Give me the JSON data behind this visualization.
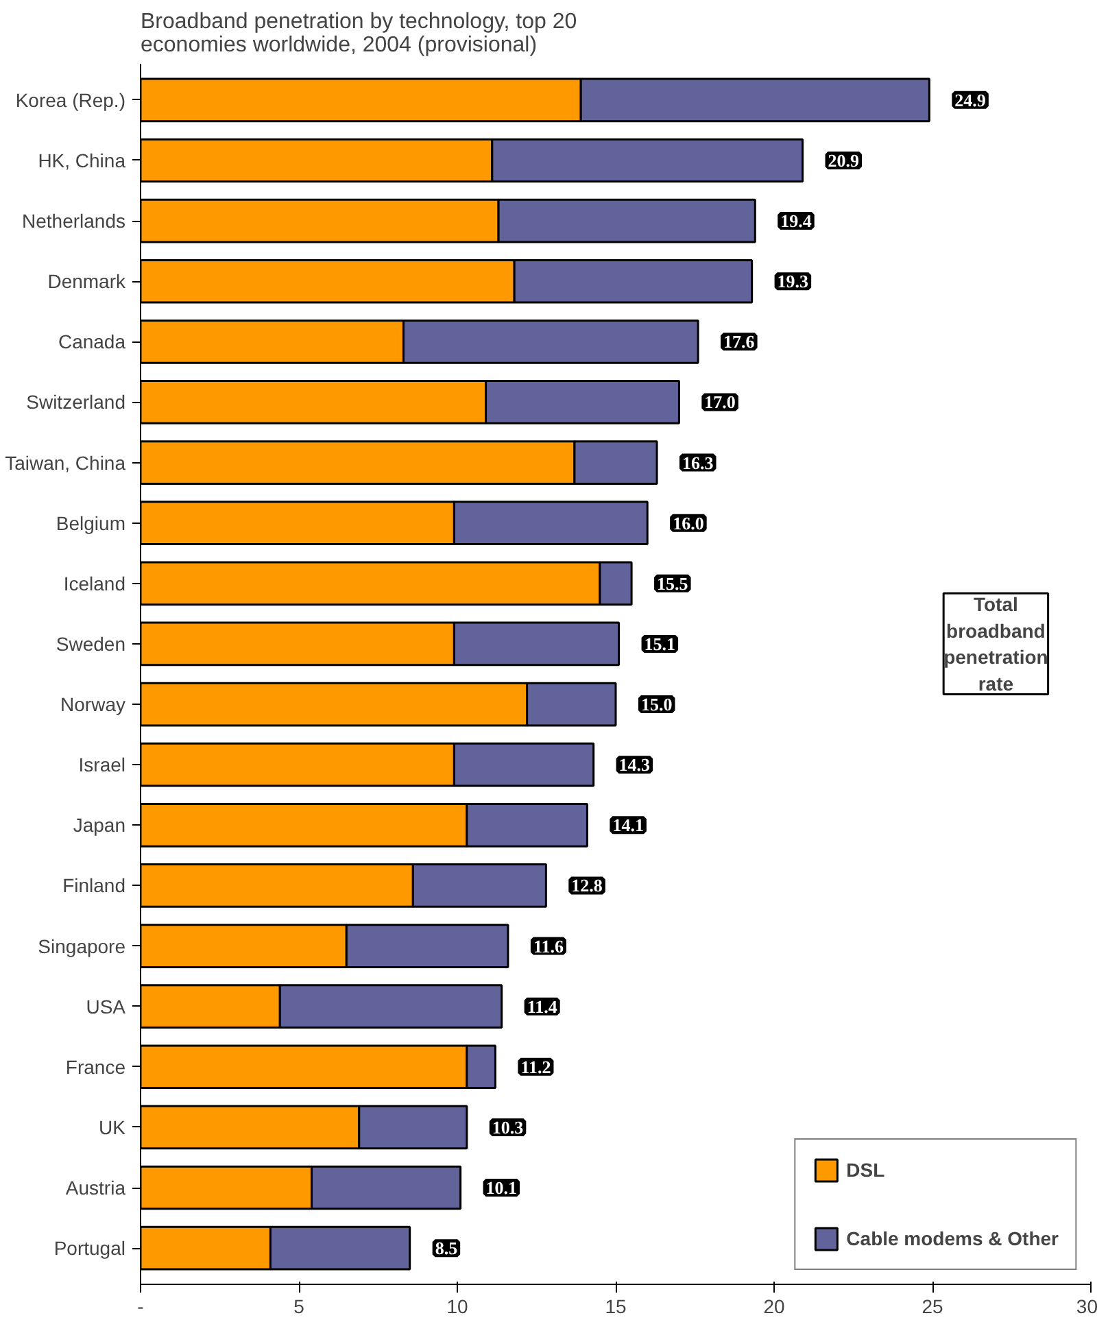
{
  "chart_data": {
    "type": "bar",
    "orientation": "horizontal",
    "stacked": true,
    "title": "Broadband penetration by technology, top 20 economies worldwide, 2004 (provisional)",
    "categories": [
      "Korea (Rep.)",
      "HK, China",
      "Netherlands",
      "Denmark",
      "Canada",
      "Switzerland",
      "Taiwan, China",
      "Belgium",
      "Iceland",
      "Sweden",
      "Norway",
      "Israel",
      "Japan",
      "Finland",
      "Singapore",
      "USA",
      "France",
      "UK",
      "Austria",
      "Portugal"
    ],
    "series": [
      {
        "name": "DSL",
        "color": "#ff9900",
        "values": [
          13.9,
          11.1,
          11.3,
          11.8,
          8.3,
          10.9,
          13.7,
          9.9,
          14.5,
          9.9,
          12.2,
          9.9,
          10.3,
          8.6,
          6.5,
          4.4,
          10.3,
          6.9,
          5.4,
          4.1
        ]
      },
      {
        "name": "Cable modems & Other",
        "color": "#63639c",
        "values": [
          11.0,
          9.8,
          8.1,
          7.5,
          9.3,
          6.1,
          2.6,
          6.1,
          1.0,
          5.2,
          2.8,
          4.4,
          3.8,
          4.2,
          5.1,
          7.0,
          0.9,
          3.4,
          4.7,
          4.4
        ]
      }
    ],
    "totals": [
      "24.9",
      "20.9",
      "19.4",
      "19.3",
      "17.6",
      "17.0",
      "16.3",
      "16.0",
      "15.5",
      "15.1",
      "15.0",
      "14.3",
      "14.1",
      "12.8",
      "11.6",
      "11.4",
      "11.2",
      "10.3",
      "10.1",
      "8.5"
    ],
    "annotations": [
      "Total broadband penetration rate"
    ],
    "xlim": [
      0,
      30
    ],
    "xticks": [
      {
        "value": 0,
        "label": "-"
      },
      5,
      10,
      15,
      20,
      25,
      30
    ],
    "grid": false,
    "legend": "bottom right"
  }
}
